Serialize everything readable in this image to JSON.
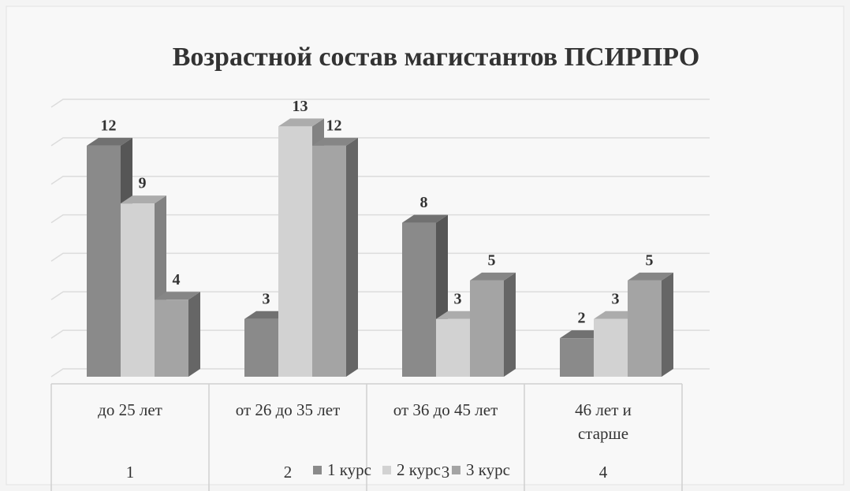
{
  "chart_data": {
    "type": "bar3d",
    "title": "Возрастной состав магистантов ПСИРПРО",
    "categories": [
      "до 25 лет",
      "от 26 до 35 лет",
      "от 36 до 45 лет",
      [
        "46 лет и",
        "старше"
      ]
    ],
    "category_numbers": [
      "1",
      "2",
      "3",
      "4"
    ],
    "series": [
      {
        "name": "1 курс",
        "color": "#8a8a8a",
        "values": [
          12,
          3,
          8,
          2
        ]
      },
      {
        "name": "2 курс",
        "color": "#d2d2d2",
        "values": [
          9,
          13,
          3,
          3
        ]
      },
      {
        "name": "3 курс",
        "color": "#a4a4a4",
        "values": [
          4,
          12,
          5,
          5
        ]
      }
    ],
    "ylim": [
      0,
      14
    ],
    "yticks": [
      0,
      2,
      4,
      6,
      8,
      10,
      12,
      14
    ],
    "grid": true
  }
}
